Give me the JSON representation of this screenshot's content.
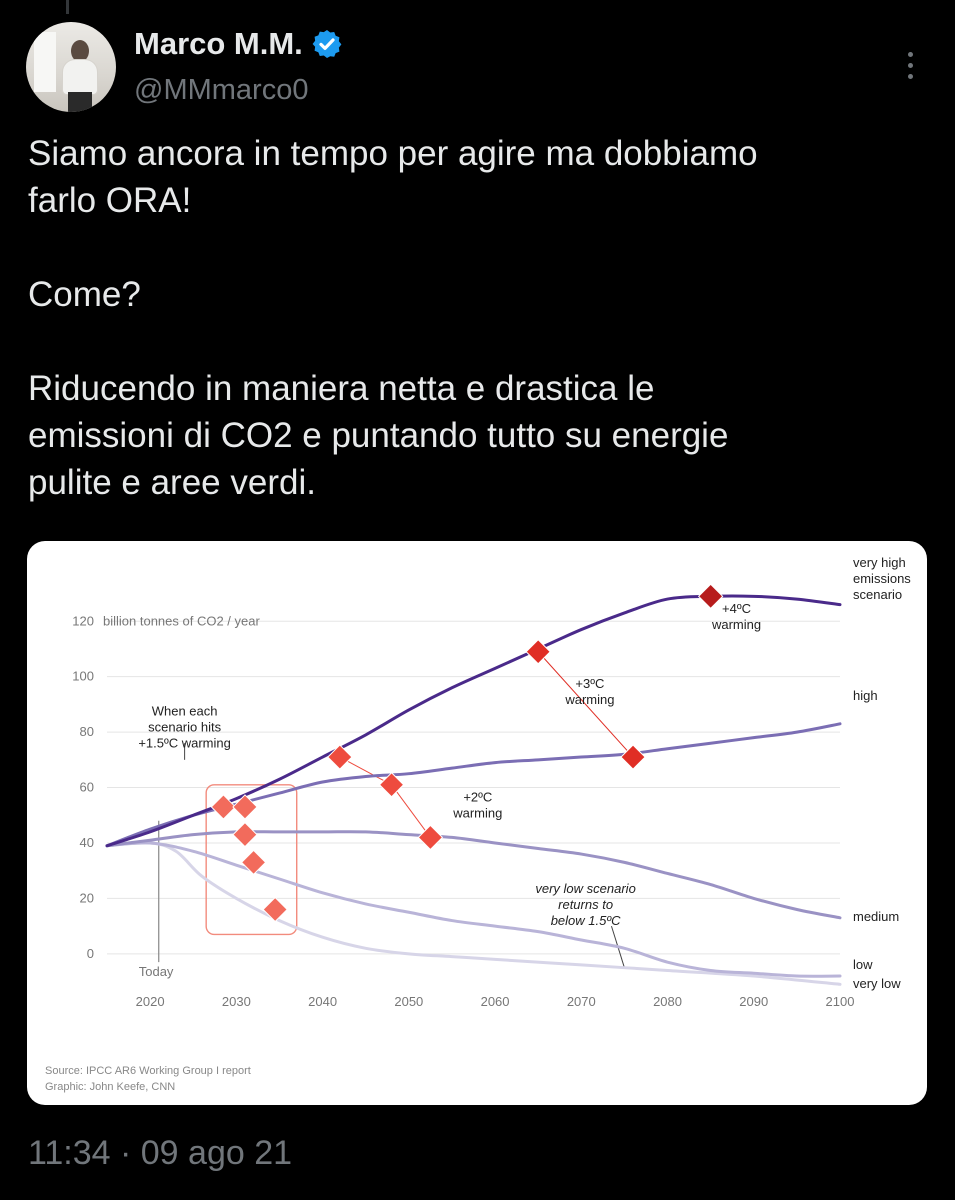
{
  "author": {
    "name": "Marco M.M.",
    "handle": "@MMmarco0",
    "verified_icon": "verified-badge-icon",
    "avatar_icon": "avatar-photo"
  },
  "tweet": {
    "paragraphs": [
      "Siamo ancora in tempo per agire ma dobbiamo\nfarlo ORA!",
      "Come?",
      "Riducendo in maniera netta e drastica le\nemissioni di CO2 e puntando tutto su energie\npulite e aree verdi."
    ],
    "timestamp": "11:34 · 09 ago 21"
  },
  "colors": {
    "background": "#000000",
    "text": "#e7e9ea",
    "muted": "#71767b",
    "verified": "#1d9bf0"
  },
  "chart_data": {
    "type": "line",
    "unit_label": "billion tonnes of CO2 / year",
    "xlim": [
      2015,
      2100
    ],
    "ylim": [
      -8,
      132
    ],
    "x_ticks": [
      2020,
      2030,
      2040,
      2050,
      2060,
      2070,
      2080,
      2090,
      2100
    ],
    "y_ticks": [
      0,
      20,
      40,
      60,
      80,
      100,
      120
    ],
    "grid": true,
    "today": {
      "x": 2021,
      "label": "Today"
    },
    "series": [
      {
        "name": "very high emissions scenario",
        "label_lines": [
          "very high",
          "emissions",
          "scenario"
        ],
        "color": "#4a2a8a",
        "width": 3,
        "points": [
          [
            2015,
            39
          ],
          [
            2020,
            44
          ],
          [
            2025,
            50
          ],
          [
            2030,
            56
          ],
          [
            2035,
            63
          ],
          [
            2040,
            71
          ],
          [
            2045,
            79
          ],
          [
            2050,
            88
          ],
          [
            2055,
            96
          ],
          [
            2060,
            103
          ],
          [
            2065,
            110
          ],
          [
            2070,
            117
          ],
          [
            2075,
            123
          ],
          [
            2080,
            128
          ],
          [
            2085,
            129
          ],
          [
            2090,
            129
          ],
          [
            2095,
            128
          ],
          [
            2100,
            126
          ]
        ]
      },
      {
        "name": "high",
        "label_lines": [
          "high"
        ],
        "color": "#7b6eb4",
        "width": 3,
        "points": [
          [
            2015,
            39
          ],
          [
            2020,
            45
          ],
          [
            2025,
            50
          ],
          [
            2030,
            54
          ],
          [
            2035,
            58
          ],
          [
            2040,
            62
          ],
          [
            2045,
            64
          ],
          [
            2050,
            65
          ],
          [
            2055,
            67
          ],
          [
            2060,
            69
          ],
          [
            2065,
            70
          ],
          [
            2070,
            71
          ],
          [
            2075,
            72
          ],
          [
            2080,
            74
          ],
          [
            2085,
            76
          ],
          [
            2090,
            78
          ],
          [
            2095,
            80
          ],
          [
            2100,
            83
          ]
        ]
      },
      {
        "name": "medium",
        "label_lines": [
          "medium"
        ],
        "color": "#9a92c4",
        "width": 3,
        "points": [
          [
            2015,
            39
          ],
          [
            2020,
            41
          ],
          [
            2025,
            43
          ],
          [
            2030,
            44
          ],
          [
            2035,
            44
          ],
          [
            2040,
            44
          ],
          [
            2045,
            44
          ],
          [
            2050,
            43
          ],
          [
            2055,
            42
          ],
          [
            2060,
            40
          ],
          [
            2065,
            38
          ],
          [
            2070,
            36
          ],
          [
            2075,
            33
          ],
          [
            2080,
            29
          ],
          [
            2085,
            25
          ],
          [
            2090,
            20
          ],
          [
            2095,
            16
          ],
          [
            2100,
            13
          ]
        ]
      },
      {
        "name": "low",
        "label_lines": [
          "low"
        ],
        "color": "#b9b4d8",
        "width": 3,
        "points": [
          [
            2015,
            39
          ],
          [
            2020,
            40
          ],
          [
            2025,
            37
          ],
          [
            2030,
            32
          ],
          [
            2035,
            27
          ],
          [
            2040,
            22
          ],
          [
            2045,
            18
          ],
          [
            2050,
            15
          ],
          [
            2055,
            12
          ],
          [
            2060,
            10
          ],
          [
            2065,
            8
          ],
          [
            2070,
            5
          ],
          [
            2075,
            2
          ],
          [
            2080,
            -3
          ],
          [
            2085,
            -6
          ],
          [
            2090,
            -7
          ],
          [
            2095,
            -8
          ],
          [
            2100,
            -8
          ]
        ]
      },
      {
        "name": "very low",
        "label_lines": [
          "very low"
        ],
        "color": "#d7d5e8",
        "width": 3,
        "points": [
          [
            2015,
            39
          ],
          [
            2020,
            40
          ],
          [
            2023,
            37
          ],
          [
            2026,
            28
          ],
          [
            2030,
            20
          ],
          [
            2035,
            12
          ],
          [
            2040,
            6
          ],
          [
            2045,
            2
          ],
          [
            2050,
            0
          ],
          [
            2055,
            -1
          ],
          [
            2060,
            -2
          ],
          [
            2070,
            -4
          ],
          [
            2080,
            -6
          ],
          [
            2090,
            -8
          ],
          [
            2100,
            -11
          ]
        ]
      }
    ],
    "markers": [
      {
        "x": 2028.5,
        "y": 53,
        "color": "#f26b5c",
        "group": "+1.5"
      },
      {
        "x": 2031,
        "y": 53,
        "color": "#f26b5c",
        "group": "+1.5"
      },
      {
        "x": 2031,
        "y": 43,
        "color": "#f26b5c",
        "group": "+1.5"
      },
      {
        "x": 2032,
        "y": 33,
        "color": "#f26b5c",
        "group": "+1.5"
      },
      {
        "x": 2034.5,
        "y": 16,
        "color": "#f26b5c",
        "group": "+1.5"
      },
      {
        "x": 2042,
        "y": 71,
        "color": "#ee4b3e",
        "group": "+2"
      },
      {
        "x": 2048,
        "y": 61,
        "color": "#ee4b3e",
        "group": "+2"
      },
      {
        "x": 2052.5,
        "y": 42,
        "color": "#ee4b3e",
        "group": "+2"
      },
      {
        "x": 2065,
        "y": 109,
        "color": "#e02e25",
        "group": "+3"
      },
      {
        "x": 2076,
        "y": 71,
        "color": "#e02e25",
        "group": "+3"
      },
      {
        "x": 2085,
        "y": 129,
        "color": "#b71c1c",
        "group": "+4"
      }
    ],
    "annotations": [
      {
        "name": "annotation-1-5c",
        "lines": [
          "When each",
          "scenario hits",
          "+1.5ºC warming"
        ],
        "x": 2024,
        "y": 86
      },
      {
        "name": "annotation-2c",
        "lines": [
          "+2ºC",
          "warming"
        ],
        "x": 2058,
        "y": 55
      },
      {
        "name": "annotation-3c",
        "lines": [
          "+3ºC",
          "warming"
        ],
        "x": 2071,
        "y": 96
      },
      {
        "name": "annotation-4c",
        "lines": [
          "+4ºC",
          "warming"
        ],
        "x": 2088,
        "y": 123
      },
      {
        "name": "annotation-very-low",
        "lines": [
          "very low scenario",
          "returns to",
          "below 1.5ºC"
        ],
        "x": 2070.5,
        "y": 22
      }
    ],
    "source": "Source: IPCC AR6 Working Group I report",
    "credit": "Graphic: John Keefe, CNN"
  }
}
